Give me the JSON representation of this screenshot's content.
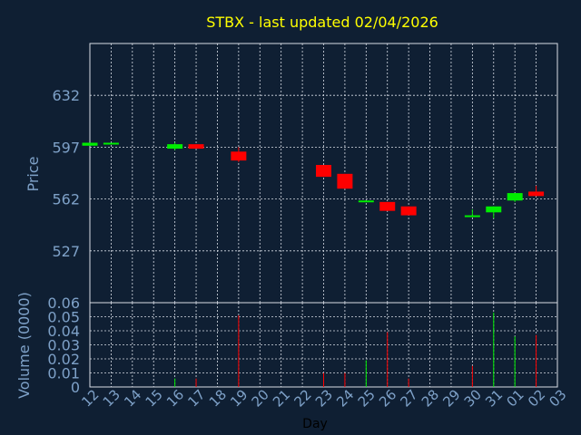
{
  "colors": {
    "background": "#0f1f33",
    "grid": "#d8dde6",
    "axis_text": "#7ea1c8",
    "title": "#ffff00",
    "xlabel_text": "#000000",
    "up": "#00ee00",
    "down": "#ff0000"
  },
  "chart_data": {
    "type": "candlestick",
    "title": "STBX - last updated 02/04/2026",
    "price_panel": {
      "ylabel": "Price",
      "yticks": [
        527,
        562,
        597,
        632
      ],
      "ylim": [
        492,
        667
      ],
      "grid": true
    },
    "volume_panel": {
      "ylabel": "Volume (0000)",
      "yticks": [
        0,
        0.01,
        0.02,
        0.03,
        0.04,
        0.05,
        0.06
      ],
      "ytick_labels": [
        "0",
        "0.01",
        "0.02",
        "0.03",
        "0.04",
        "0.05",
        "0.06"
      ],
      "ylim": [
        0,
        0.06
      ],
      "grid": true
    },
    "xlabel": "Day",
    "categories": [
      "12",
      "13",
      "14",
      "15",
      "16",
      "17",
      "18",
      "19",
      "20",
      "21",
      "22",
      "23",
      "24",
      "25",
      "26",
      "27",
      "28",
      "29",
      "30",
      "31",
      "01",
      "02",
      "03"
    ],
    "candles": [
      {
        "day": "12",
        "open": 598,
        "close": 600,
        "high": 600,
        "low": 598
      },
      {
        "day": "13",
        "open": 600,
        "close": 600,
        "high": 600,
        "low": 600
      },
      {
        "day": "16",
        "open": 596,
        "close": 599,
        "high": 600,
        "low": 595
      },
      {
        "day": "17",
        "open": 599,
        "close": 596,
        "high": 599,
        "low": 596
      },
      {
        "day": "19",
        "open": 594,
        "close": 588,
        "high": 597,
        "low": 587
      },
      {
        "day": "23",
        "open": 585,
        "close": 577,
        "high": 585,
        "low": 577
      },
      {
        "day": "24",
        "open": 579,
        "close": 569,
        "high": 579,
        "low": 569
      },
      {
        "day": "25",
        "open": 560,
        "close": 561,
        "high": 561,
        "low": 560
      },
      {
        "day": "26",
        "open": 560,
        "close": 554,
        "high": 560,
        "low": 554
      },
      {
        "day": "27",
        "open": 557,
        "close": 551,
        "high": 557,
        "low": 551
      },
      {
        "day": "30",
        "open": 551,
        "close": 551,
        "high": 555,
        "low": 550
      },
      {
        "day": "31",
        "open": 553,
        "close": 557,
        "high": 557,
        "low": 549
      },
      {
        "day": "01",
        "open": 561,
        "close": 566,
        "high": 566,
        "low": 560
      },
      {
        "day": "02",
        "open": 567,
        "close": 564,
        "high": 571,
        "low": 564
      }
    ],
    "volumes": [
      {
        "day": "16",
        "value": 0.006,
        "direction": "up"
      },
      {
        "day": "17",
        "value": 0.006,
        "direction": "down"
      },
      {
        "day": "19",
        "value": 0.051,
        "direction": "down"
      },
      {
        "day": "23",
        "value": 0.01,
        "direction": "down"
      },
      {
        "day": "24",
        "value": 0.01,
        "direction": "down"
      },
      {
        "day": "25",
        "value": 0.019,
        "direction": "up"
      },
      {
        "day": "26",
        "value": 0.039,
        "direction": "down"
      },
      {
        "day": "27",
        "value": 0.006,
        "direction": "down"
      },
      {
        "day": "30",
        "value": 0.015,
        "direction": "down"
      },
      {
        "day": "31",
        "value": 0.053,
        "direction": "up"
      },
      {
        "day": "01",
        "value": 0.036,
        "direction": "up"
      },
      {
        "day": "02",
        "value": 0.037,
        "direction": "down"
      }
    ]
  }
}
